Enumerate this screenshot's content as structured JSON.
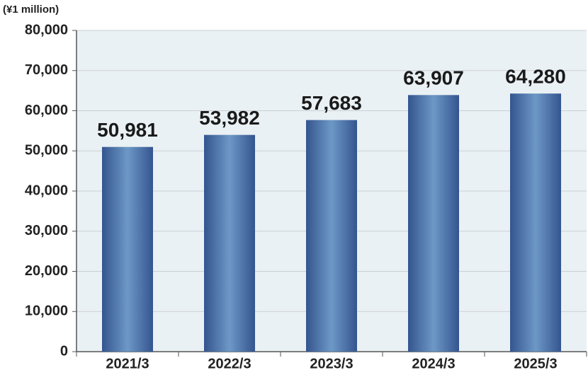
{
  "chart_data": {
    "type": "bar",
    "y_label": "(¥1 million)",
    "categories": [
      "2021/3",
      "2022/3",
      "2023/3",
      "2024/3",
      "2025/3"
    ],
    "values": [
      50981,
      53982,
      57683,
      63907,
      64280
    ],
    "value_labels": [
      "50,981",
      "53,982",
      "57,683",
      "63,907",
      "64,280"
    ],
    "color": "#34558f",
    "ylim": [
      0,
      80000
    ],
    "yticks": [
      0,
      {
        "value": 10000,
        "label": "10,000"
      },
      {
        "value": 20000,
        "label": "20,000"
      },
      {
        "value": 30000,
        "label": "30,000"
      },
      {
        "value": 40000,
        "label": "40,000"
      },
      {
        "value": 50000,
        "label": "50,000"
      },
      {
        "value": 60000,
        "label": "60,000"
      },
      {
        "value": 70000,
        "label": "70,000"
      },
      {
        "value": 80000,
        "label": "80,000"
      }
    ],
    "grid": true
  }
}
